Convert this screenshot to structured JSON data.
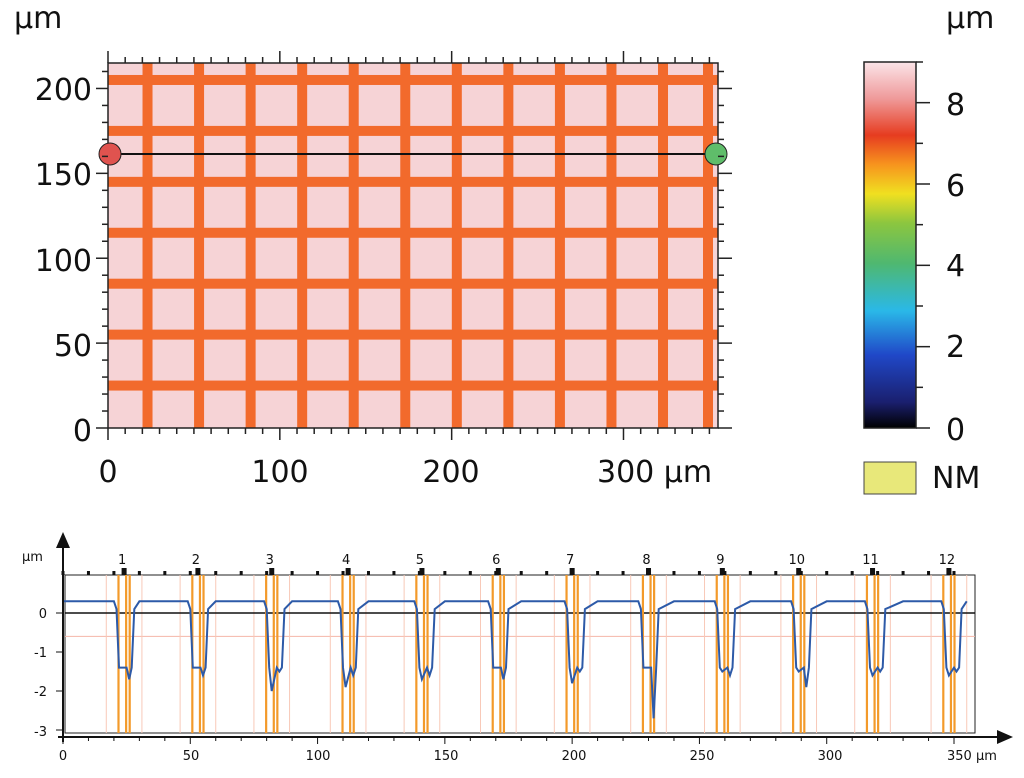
{
  "map": {
    "y_unit": "µm",
    "x_unit_label": "300 µm",
    "y_ticks": [
      "0",
      "50",
      "100",
      "150",
      "200"
    ],
    "x_ticks": [
      "0",
      "100",
      "200"
    ],
    "grid_color": "#f26a2c",
    "cell_color": "#f6d3d6",
    "marker_left_color": "#e0534f",
    "marker_right_color": "#5fbd6a"
  },
  "colorbar": {
    "unit": "µm",
    "ticks": [
      "0",
      "2",
      "4",
      "6",
      "8"
    ],
    "nm_label": "NM",
    "nm_color": "#e8e87a"
  },
  "chart_data": [
    {
      "type": "heatmap",
      "title": "",
      "xlabel": "µm",
      "ylabel": "µm",
      "xlim": [
        0,
        355
      ],
      "ylim": [
        0,
        215
      ],
      "color_scale": [
        0,
        9
      ],
      "colorbar_unit": "µm",
      "grid_lines_vertical_x": [
        23,
        53,
        83,
        113,
        143,
        173,
        203,
        233,
        263,
        293,
        323,
        353
      ],
      "grid_lines_horizontal_y": [
        25,
        55,
        85,
        115,
        145,
        175,
        205
      ],
      "grid_line_height": 7,
      "cell_height": 8.3,
      "profile_line_y": 160,
      "legend": "NM"
    },
    {
      "type": "line",
      "title": "",
      "xlabel": "µm",
      "ylabel": "µm",
      "xlim": [
        0,
        355
      ],
      "ylim": [
        -3,
        1
      ],
      "x_ticks": [
        "0",
        "50",
        "100",
        "150",
        "200",
        "250",
        "300",
        "350 µm"
      ],
      "y_ticks": [
        "0",
        "-1",
        "-2",
        "-3"
      ],
      "marker_labels": [
        "1",
        "2",
        "3",
        "4",
        "5",
        "6",
        "7",
        "8",
        "9",
        "10",
        "11",
        "12"
      ],
      "marker_positions": [
        24,
        53,
        82,
        112,
        141,
        171,
        200,
        230,
        259,
        289,
        318,
        348
      ],
      "top_level": 0.3,
      "bottom_level": -1.4,
      "series": [
        {
          "color": "#2d5aa8",
          "x": [
            0,
            20,
            21,
            22,
            23,
            25,
            26,
            27,
            28,
            30,
            49,
            50,
            51,
            52,
            54,
            55,
            56,
            57,
            60,
            79,
            80,
            81,
            82,
            84,
            85,
            86,
            87,
            90,
            108,
            109,
            110,
            111,
            113,
            114,
            115,
            116,
            120,
            138,
            139,
            140,
            141,
            143,
            144,
            145,
            146,
            150,
            167,
            168,
            169,
            170,
            172,
            173,
            174,
            175,
            180,
            197,
            198,
            199,
            200,
            202,
            203,
            204,
            205,
            210,
            226,
            227,
            228,
            229,
            231,
            232,
            233,
            234,
            240,
            256,
            257,
            258,
            259,
            261,
            262,
            263,
            264,
            270,
            286,
            287,
            288,
            289,
            291,
            292,
            293,
            294,
            300,
            315,
            316,
            317,
            318,
            320,
            321,
            322,
            323,
            330,
            345,
            346,
            347,
            348,
            350,
            351,
            352,
            353,
            355
          ],
          "y": [
            0.3,
            0.3,
            0.1,
            -1.4,
            -1.4,
            -1.4,
            -1.7,
            -1.4,
            0.1,
            0.3,
            0.3,
            0.1,
            -1.4,
            -1.4,
            -1.4,
            -1.6,
            -1.4,
            0.1,
            0.3,
            0.3,
            0.1,
            -1.4,
            -2.0,
            -1.4,
            -1.5,
            -1.4,
            0.1,
            0.3,
            0.3,
            0.1,
            -1.4,
            -1.9,
            -1.4,
            -1.6,
            -1.4,
            0.1,
            0.3,
            0.3,
            0.1,
            -1.4,
            -1.7,
            -1.4,
            -1.6,
            -1.4,
            0.1,
            0.3,
            0.3,
            0.1,
            -1.4,
            -1.4,
            -1.4,
            -1.7,
            -1.4,
            0.1,
            0.3,
            0.3,
            0.1,
            -1.4,
            -1.8,
            -1.4,
            -1.5,
            -1.4,
            0.1,
            0.3,
            0.3,
            0.1,
            -1.4,
            -1.4,
            -1.4,
            -2.7,
            -1.4,
            0.1,
            0.3,
            0.3,
            0.1,
            -1.4,
            -1.5,
            -1.4,
            -1.6,
            -1.4,
            0.1,
            0.3,
            0.3,
            0.1,
            -1.4,
            -1.5,
            -1.4,
            -1.9,
            -1.4,
            0.1,
            0.3,
            0.3,
            0.1,
            -1.4,
            -1.6,
            -1.4,
            -1.5,
            -1.4,
            0.1,
            0.3,
            0.3,
            0.1,
            -1.4,
            -1.6,
            -1.4,
            -1.5,
            -1.4,
            0.1,
            0.3
          ]
        }
      ]
    }
  ]
}
